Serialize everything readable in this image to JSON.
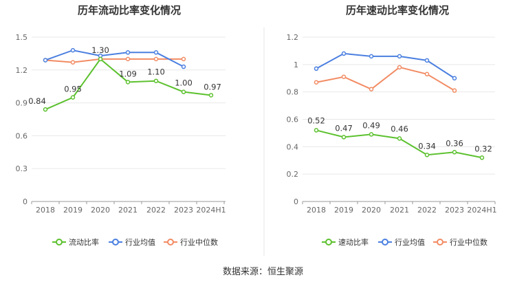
{
  "source_text": "数据来源：恒生聚源",
  "chart_data": [
    {
      "type": "line",
      "title": "历年流动比率变化情况",
      "categories": [
        "2018",
        "2019",
        "2020",
        "2021",
        "2022",
        "2023",
        "2024H1"
      ],
      "yticks": [
        "0",
        "0.3",
        "0.6",
        "0.9",
        "1.2",
        "1.5"
      ],
      "ylim": [
        0,
        1.5
      ],
      "grid": true,
      "legend_position": "bottom",
      "series": [
        {
          "name": "流动比率",
          "color": "#5cc12e",
          "values": [
            0.84,
            0.95,
            1.3,
            1.09,
            1.1,
            1.0,
            0.97
          ],
          "labels": [
            "0.84",
            "0.95",
            "1.30",
            "1.09",
            "1.10",
            "1.00",
            "0.97"
          ]
        },
        {
          "name": "行业均值",
          "color": "#4a7fe0",
          "values": [
            1.29,
            1.38,
            1.33,
            1.36,
            1.36,
            1.23,
            null
          ]
        },
        {
          "name": "行业中位数",
          "color": "#f28b63",
          "values": [
            1.29,
            1.27,
            1.3,
            1.3,
            1.3,
            1.3,
            null
          ]
        }
      ]
    },
    {
      "type": "line",
      "title": "历年速动比率变化情况",
      "categories": [
        "2018",
        "2019",
        "2020",
        "2021",
        "2022",
        "2023",
        "2024H1"
      ],
      "yticks": [
        "0",
        "0.2",
        "0.4",
        "0.6",
        "0.8",
        "1",
        "1.2"
      ],
      "ylim": [
        0,
        1.2
      ],
      "grid": true,
      "legend_position": "bottom",
      "series": [
        {
          "name": "速动比率",
          "color": "#5cc12e",
          "values": [
            0.52,
            0.47,
            0.49,
            0.46,
            0.34,
            0.36,
            0.32
          ],
          "labels": [
            "0.52",
            "0.47",
            "0.49",
            "0.46",
            "0.34",
            "0.36",
            "0.32"
          ]
        },
        {
          "name": "行业均值",
          "color": "#4a7fe0",
          "values": [
            0.97,
            1.08,
            1.06,
            1.06,
            1.03,
            0.9,
            null
          ]
        },
        {
          "name": "行业中位数",
          "color": "#f28b63",
          "values": [
            0.87,
            0.91,
            0.82,
            0.98,
            0.93,
            0.81,
            null
          ]
        }
      ]
    }
  ]
}
